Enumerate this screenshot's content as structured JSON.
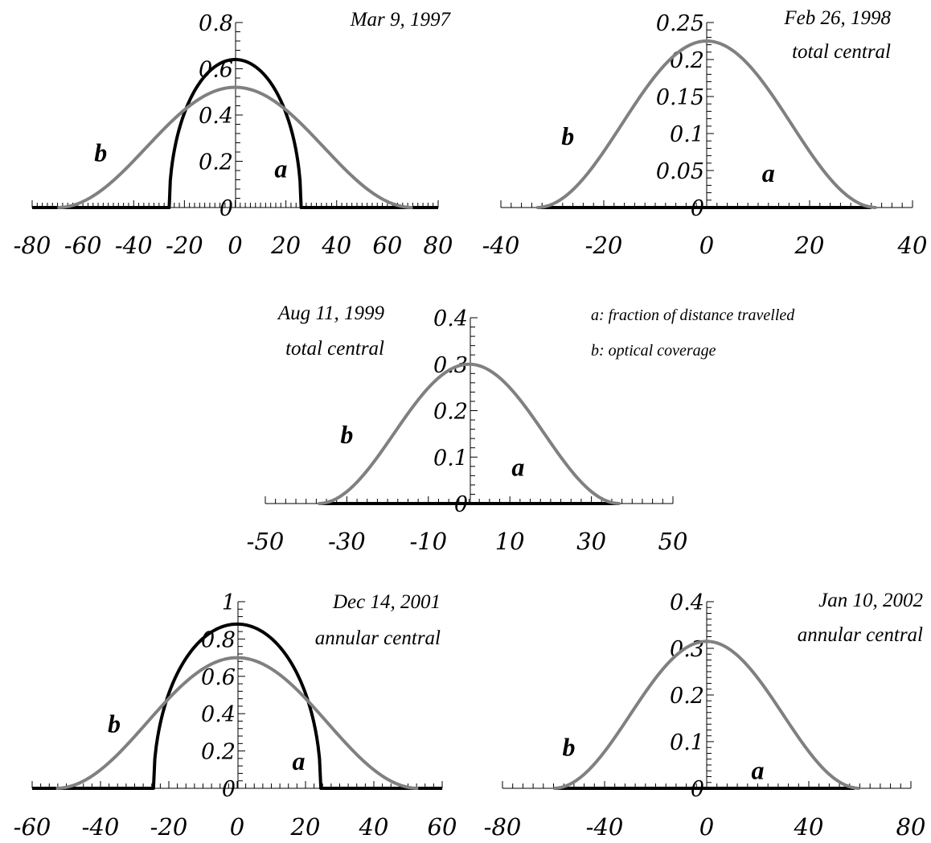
{
  "legend": {
    "a": "a:  fraction of distance travelled",
    "b": "b: optical coverage"
  },
  "chart_data": [
    {
      "type": "line",
      "title_lines": [
        "Mar 9, 1997"
      ],
      "xlim": [
        -80,
        80
      ],
      "ylim": [
        0,
        0.8
      ],
      "x_ticks": [
        -80,
        -60,
        -40,
        -20,
        0,
        20,
        40,
        60,
        80
      ],
      "x_tick_labels": [
        "-80",
        "-60",
        "-40",
        "-20",
        "0",
        "20",
        "40",
        "60",
        "80"
      ],
      "y_ticks": [
        0,
        0.2,
        0.4,
        0.6,
        0.8
      ],
      "y_tick_labels": [
        "0",
        "0.2",
        "0.4",
        "0.6",
        "0.8"
      ],
      "series": [
        {
          "label": "a",
          "color": "#000000",
          "shape": "ellipse",
          "half_width": 26,
          "peak": 0.64,
          "range": [
            -80,
            80
          ]
        },
        {
          "label": "b",
          "color": "#808080",
          "shape": "cosine",
          "half_width": 70,
          "peak": 0.52
        }
      ],
      "annotations": [
        {
          "text": "b",
          "x": -53,
          "y": 0.2
        },
        {
          "text": "a",
          "x": 18,
          "y": 0.13
        }
      ]
    },
    {
      "type": "line",
      "title_lines": [
        "Feb 26, 1998",
        "total central"
      ],
      "xlim": [
        -40,
        40
      ],
      "ylim": [
        0,
        0.25
      ],
      "x_ticks": [
        -40,
        -20,
        0,
        20,
        40
      ],
      "x_tick_labels": [
        "-40",
        "-20",
        "0",
        "20",
        "40"
      ],
      "y_ticks": [
        0,
        0.05,
        0.1,
        0.15,
        0.2,
        0.25
      ],
      "y_tick_labels": [
        "0",
        "0.05",
        "0.1",
        "0.15",
        "0.2",
        "0.25"
      ],
      "series": [
        {
          "label": "a",
          "color": "#000000",
          "shape": "flat",
          "range": [
            -33,
            32
          ],
          "value": 0
        },
        {
          "label": "b",
          "color": "#808080",
          "shape": "cosine",
          "half_width": 33,
          "peak": 0.225
        }
      ],
      "annotations": [
        {
          "text": "b",
          "x": -27,
          "y": 0.085
        },
        {
          "text": "a",
          "x": 12,
          "y": 0.035
        }
      ]
    },
    {
      "type": "line",
      "title_lines": [
        "Aug 11, 1999",
        "total central"
      ],
      "xlim": [
        -50,
        50
      ],
      "ylim": [
        0,
        0.4
      ],
      "x_ticks": [
        -50,
        -30,
        -10,
        10,
        30,
        50
      ],
      "x_tick_labels": [
        "-50",
        "-30",
        "-10",
        "10",
        "30",
        "50"
      ],
      "y_ticks": [
        0,
        0.1,
        0.2,
        0.3,
        0.4
      ],
      "y_tick_labels": [
        "0",
        "0.1",
        "0.2",
        "0.3",
        "0.4"
      ],
      "series": [
        {
          "label": "a",
          "color": "#000000",
          "shape": "flat",
          "range": [
            -37,
            37
          ],
          "value": 0
        },
        {
          "label": "b",
          "color": "#808080",
          "shape": "cosine",
          "half_width": 37,
          "peak": 0.3
        }
      ],
      "annotations": [
        {
          "text": "b",
          "x": -30,
          "y": 0.13
        },
        {
          "text": "a",
          "x": 12,
          "y": 0.06
        }
      ]
    },
    {
      "type": "line",
      "title_lines": [
        "Dec 14, 2001",
        "annular central"
      ],
      "xlim": [
        -60,
        60
      ],
      "ylim": [
        0,
        1
      ],
      "x_ticks": [
        -60,
        -40,
        -20,
        0,
        20,
        40,
        60
      ],
      "x_tick_labels": [
        "-60",
        "-40",
        "-20",
        "0",
        "20",
        "40",
        "60"
      ],
      "y_ticks": [
        0,
        0.2,
        0.4,
        0.6,
        0.8,
        1
      ],
      "y_tick_labels": [
        "0",
        "0.2",
        "0.4",
        "0.6",
        "0.8",
        "1"
      ],
      "series": [
        {
          "label": "a",
          "color": "#000000",
          "shape": "ellipse",
          "half_width": 24.5,
          "peak": 0.88,
          "range": [
            -60,
            60
          ]
        },
        {
          "label": "b",
          "color": "#808080",
          "shape": "cosine",
          "half_width": 53,
          "peak": 0.7
        }
      ],
      "annotations": [
        {
          "text": "b",
          "x": -36,
          "y": 0.3
        },
        {
          "text": "a",
          "x": 18,
          "y": 0.1
        }
      ]
    },
    {
      "type": "line",
      "title_lines": [
        "Jan 10, 2002",
        "annular central"
      ],
      "xlim": [
        -80,
        80
      ],
      "ylim": [
        0,
        0.4
      ],
      "x_ticks": [
        -80,
        -40,
        0,
        40,
        80
      ],
      "x_tick_labels": [
        "-80",
        "-40",
        "0",
        "40",
        "80"
      ],
      "y_ticks": [
        0,
        0.1,
        0.2,
        0.3,
        0.4
      ],
      "y_tick_labels": [
        "0",
        "0.1",
        "0.2",
        "0.3",
        "0.4"
      ],
      "series": [
        {
          "label": "a",
          "color": "#000000",
          "shape": "flat",
          "range": [
            -60,
            58
          ],
          "value": 0
        },
        {
          "label": "b",
          "color": "#808080",
          "shape": "cosine",
          "half_width": 60,
          "peak": 0.315
        }
      ],
      "annotations": [
        {
          "text": "b",
          "x": -54,
          "y": 0.07
        },
        {
          "text": "a",
          "x": 20,
          "y": 0.02
        }
      ]
    }
  ]
}
